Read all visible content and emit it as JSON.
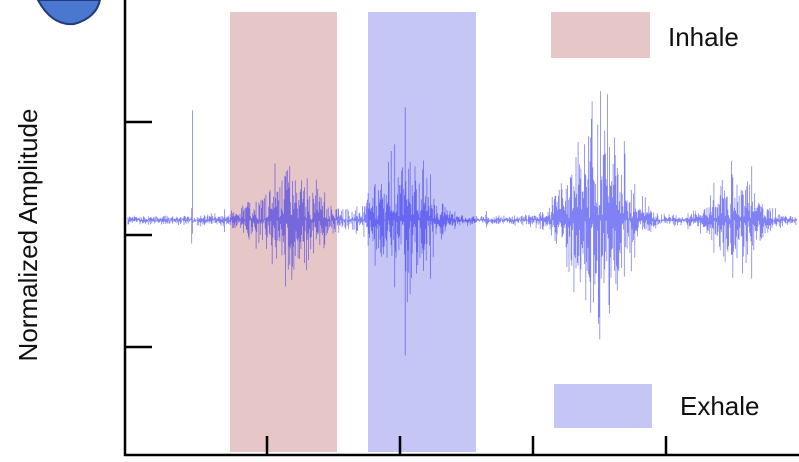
{
  "figure": {
    "y_axis_label": "Normalized Amplitude",
    "legend": [
      {
        "label": "Inhale",
        "color": "#e6c6c6"
      },
      {
        "label": "Exhale",
        "color": "#c6c6f6"
      }
    ]
  }
}
